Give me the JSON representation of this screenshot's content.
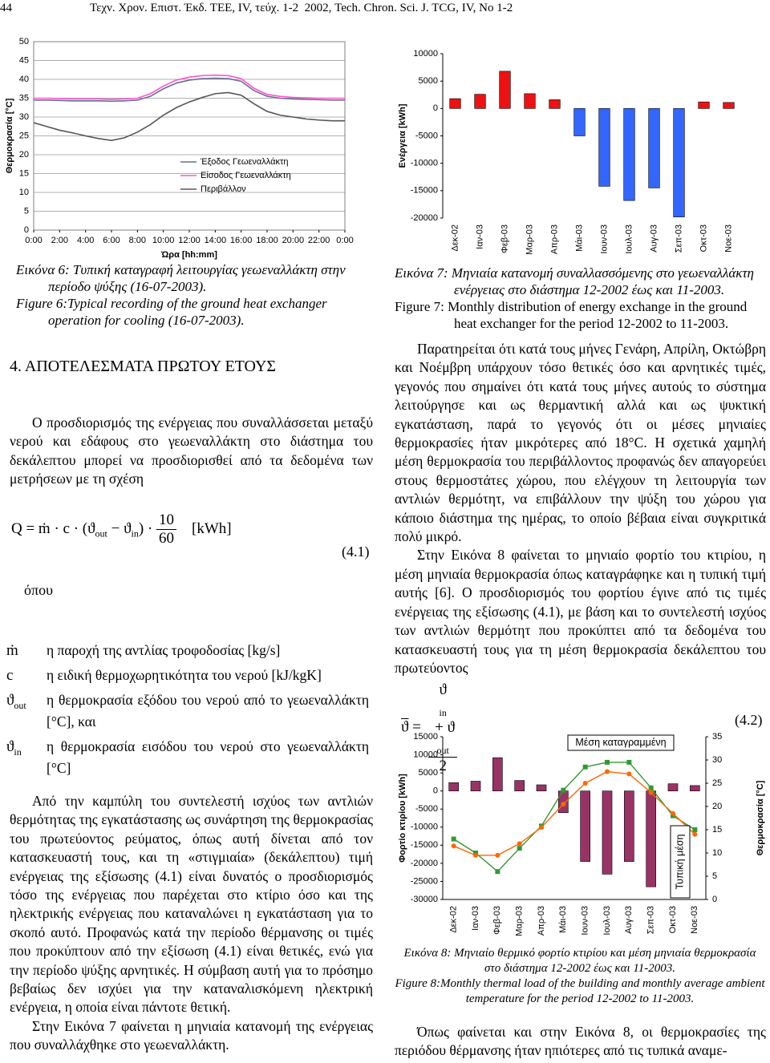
{
  "header": {
    "page_number": "44",
    "journal": "Τεχν. Χρον. Επιστ. Έκδ. ΤΕΕ, IV, τεύχ. 1-2  2002, Tech. Chron. Sci. J. TCG, IV, No 1-2"
  },
  "chart_data": [
    {
      "type": "line",
      "ylabel": "Θερμοκρασία [°C]",
      "xlabel": "Ώρα [hh:mm]",
      "x": [
        0,
        1,
        2,
        3,
        4,
        5,
        6,
        7,
        8,
        9,
        10,
        11,
        12,
        13,
        14,
        15,
        16,
        17,
        18,
        19,
        20,
        21,
        22,
        23,
        24
      ],
      "xlim": [
        0,
        24
      ],
      "xticks": [
        {
          "value": 0,
          "label": "0:00"
        },
        {
          "value": 2,
          "label": "2:00"
        },
        {
          "value": 4,
          "label": "4:00"
        },
        {
          "value": 6,
          "label": "6:00"
        },
        {
          "value": 8,
          "label": "8:00"
        },
        {
          "value": 10,
          "label": "10:00"
        },
        {
          "value": 12,
          "label": "12:00"
        },
        {
          "value": 14,
          "label": "14:00"
        },
        {
          "value": 16,
          "label": "16:00"
        },
        {
          "value": 18,
          "label": "18:00"
        },
        {
          "value": 20,
          "label": "20:00"
        },
        {
          "value": 22,
          "label": "22:00"
        },
        {
          "value": 24,
          "label": "0:00"
        }
      ],
      "ylim": [
        0,
        50
      ],
      "yticks": [
        0,
        5,
        10,
        15,
        20,
        25,
        30,
        35,
        40,
        45,
        50
      ],
      "grid": true,
      "legend": "lower-center",
      "series": [
        {
          "name": "Έξοδος Γεωεναλλάκτη",
          "color": "#6b6b9a",
          "values": [
            34.5,
            34.5,
            34.4,
            34.3,
            34.3,
            34.3,
            34.2,
            34.3,
            34.5,
            35.5,
            37.5,
            39,
            39.8,
            40.2,
            40.3,
            40.2,
            39.5,
            37,
            35.5,
            35,
            34.8,
            34.7,
            34.6,
            34.5,
            34.5
          ]
        },
        {
          "name": "Είσοδος Γεωεναλλάκτη",
          "color": "#ff55cc",
          "values": [
            35,
            35,
            34.9,
            34.8,
            34.8,
            34.8,
            34.7,
            34.8,
            35,
            36.2,
            38.2,
            39.8,
            40.6,
            41,
            41.1,
            41,
            40.2,
            37.6,
            36,
            35.5,
            35.2,
            35.1,
            35,
            35,
            35
          ]
        },
        {
          "name": "Περιβάλλον",
          "color": "#555555",
          "values": [
            28.5,
            27.5,
            26.5,
            25.8,
            25,
            24.3,
            23.8,
            24.5,
            26,
            28,
            30.5,
            32.5,
            34,
            35.2,
            36.2,
            36.5,
            35.8,
            33.5,
            31.5,
            30.5,
            30,
            29.5,
            29.2,
            29,
            29
          ]
        }
      ]
    },
    {
      "type": "bar",
      "ylabel": "Ενέργεια [kWh]",
      "categories": [
        "Δεκ-02",
        "Ιαν-03",
        "Φεβ-03",
        "Μαρ-03",
        "Απρ-03",
        "Μάι-03",
        "Ιουν-03",
        "Ιουλ-03",
        "Αυγ-03",
        "Σεπ-03",
        "Οκτ-03",
        "Νοε-03"
      ],
      "values": [
        1800,
        2600,
        6800,
        2700,
        1600,
        -5000,
        -14200,
        -16800,
        -14500,
        -19800,
        1200,
        1100
      ],
      "positive_color": "#ee1111",
      "negative_color": "#3366ff",
      "ylim": [
        -20000,
        10000
      ],
      "yticks": [
        -20000,
        -15000,
        -10000,
        -5000,
        0,
        5000,
        10000
      ],
      "grid": false
    },
    {
      "type": "combo",
      "ylabel": "Φορτίο κτιρίου [kWh]",
      "y2label": "Θερμοκρασία [°C]",
      "categories": [
        "Δεκ-02",
        "Ιαν-03",
        "Φεβ-03",
        "Μαρ-03",
        "Απρ-03",
        "Μάι-03",
        "Ιουν-03",
        "Ιουλ-03",
        "Αυγ-03",
        "Σεπ-03",
        "Οκτ-03",
        "Νοε-03"
      ],
      "ylim": [
        -30000,
        15000
      ],
      "yticks": [
        -30000,
        -25000,
        -20000,
        -15000,
        -10000,
        -5000,
        0,
        5000,
        10000,
        15000
      ],
      "y2lim": [
        0,
        35
      ],
      "y2ticks": [
        0,
        5,
        10,
        15,
        20,
        25,
        30,
        35
      ],
      "grid": false,
      "series": [
        {
          "type": "bar",
          "color": "#993366",
          "values": [
            2300,
            2700,
            9200,
            2900,
            1700,
            -6000,
            -19500,
            -23000,
            -19500,
            -26500,
            2000,
            1500
          ]
        },
        {
          "type": "line",
          "name": "Μέση καταγραμμένη",
          "color": "#339933",
          "axis": "y2",
          "marker": "square",
          "values": [
            13,
            10,
            6,
            11,
            15.8,
            23.5,
            28.5,
            29.5,
            29.5,
            24,
            18,
            15
          ]
        },
        {
          "type": "line",
          "name": "Τυπική μέση",
          "color": "#ff6600",
          "axis": "y2",
          "marker": "circle",
          "values": [
            11.5,
            9.5,
            9.5,
            12,
            15.5,
            20.5,
            25,
            27.5,
            27,
            23,
            18.5,
            14
          ]
        }
      ]
    }
  ],
  "captions": [
    {
      "greek": "Εικόνα 6: Τυπική καταγραφή λειτουργίας γεωεναλλάκτη στην περίοδο ψύξης (16-07-2003).",
      "english": "Figure 6:Typical recording of the ground heat exchanger operation for cooling (16-07-2003)."
    },
    {
      "greek": "Εικόνα 7: Μηνιαία κατανομή συναλλασσόμενης στο γεωεναλλάκτη ενέργειας στο διάστημα 12-2002 έως και 11-2003.",
      "english": "Figure 7: Monthly distribution of energy exchange in the ground heat exchanger for the period 12-2002 to 11-2003."
    },
    {
      "greek": "Εικόνα 8: Μηνιαίο θερμικό φορτίο κτιρίου και μέση μηνιαία θερμοκρασία στο διάστημα 12-2002 έως και 11-2003.",
      "english": "Figure 8:Monthly thermal load of the building and monthly average ambient temperature for the period 12-2002 to 11-2003."
    }
  ],
  "left_column": {
    "heading": "4. ΑΠΟΤΕΛΕΣΜΑΤΑ ΠΡΩΤΟΥ ΕΤΟΥΣ",
    "intro": "Ο προσδιορισμός της ενέργειας που συναλλάσσεται μεταξύ νερού και εδάφους στο γεωεναλλάκτη στο διάστημα του δεκάλεπτου μπορεί να προσδιορισθεί από τα δεδομένα των μετρήσεων με τη σχέση",
    "equation": {
      "lhs": "Q = ṁ · c · (ϑ",
      "sub1": "out",
      "mid": " − ϑ",
      "sub2": "in",
      "rhs": ") ·",
      "num": "10",
      "den": "60",
      "unit": "[kWh]",
      "number": "(4.1)"
    },
    "where": "όπου",
    "definitions": [
      {
        "symbol": "ṁ",
        "text": "η παροχή της αντλίας τροφοδοσίας [kg/s]"
      },
      {
        "symbol": "c",
        "text": "η ειδική θερμοχωρητικότητα του νερού [kJ/kgK]"
      },
      {
        "symbol": "ϑ",
        "sub": "out",
        "text": "η θερμοκρασία εξόδου του νερού από το γεωεναλλάκτη [°C], και"
      },
      {
        "symbol": "ϑ",
        "sub": "in",
        "text": "η θερμοκρασία εισόδου του νερού στο γεωεναλλάκτη [°C]"
      }
    ],
    "paragraphs": [
      "Από την καμπύλη του συντελεστή ισχύος των αντλιών θερμότητας της εγκατάστασης ως συνάρτηση της θερμοκρασίας του πρωτεύοντος ρεύματος, όπως αυτή δίνεται από τον κατασκευαστή τους, και τη «στιγμιαία» (δεκάλεπτου) τιμή ενέργειας της εξίσωσης (4.1) είναι δυνατός ο προσδιορισμός τόσο της ενέργειας που παρέχεται στο κτίριο όσο και της ηλεκτρικής ενέργειας που καταναλώνει η εγκατάσταση για το σκοπό αυτό. Προφανώς κατά την περίοδο θέρμανσης οι τιμές που προκύπτουν από την εξίσωση (4.1) είναι θετικές, ενώ για την περίοδο ψύξης αρνητικές. Η σύμβαση αυτή για το πρόσημο βεβαίως δεν ισχύει για την καταναλισκόμενη ηλεκτρική ενέργεια, η οποία είναι πάντοτε θετική.",
      "Στην Εικόνα 7 φαίνεται η μηνιαία κατανομή της ενέργειας που συναλλάχθηκε στο γεωεναλλάκτη."
    ]
  },
  "right_column": {
    "paragraphs": [
      "Παρατηρείται ότι κατά τους μήνες Γενάρη, Απρίλη, Οκτώβρη και Νοέμβρη υπάρχουν τόσο θετικές όσο και αρνητικές τιμές, γεγονός που σημαίνει ότι κατά τους μήνες αυτούς το σύστημα λειτούργησε και ως θερμαντική αλλά και ως ψυκτική εγκατάσταση, παρά το γεγονός ότι οι μέσες μηνιαίες θερμοκρασίες ήταν μικρότερες από 18°C. Η σχετικά χαμηλή μέση θερμοκρασία του περιβάλλοντος προφανώς δεν απαγορεύει στους θερμοστάτες χώρου, που ελέγχουν τη λειτουργία των αντλιών θερμότητ, να επιβάλλουν την ψύξη του χώρου για κάποιο διάστημα της ημέρας, το οποίο βέβαια είναι συγκριτικά πολύ μικρό.",
      "Στην Εικόνα 8 φαίνεται το μηνιαίο φορτίο του κτιρίου, η μέση μηνιαία θερμοκρασία όπως καταγράφηκε και η τυπική τιμή αυτής [6]. Ο προσδιορισμός του φορτίου έγινε από τις τιμές ενέργειας της εξίσωσης (4.1), με βάση και το συντελεστή ισχύος των αντλιών θερμότητ που προκύπτει από τα δεδομένα του κατασκευαστή τους για τη μέση θερμοκρασία δεκάλεπτου του πρωτεύοντος"
    ],
    "equation": {
      "lhs": "ϑ",
      "eq": " = ",
      "n1": "ϑ",
      "sub1": "in",
      "plus": " + ϑ",
      "sub2": "out",
      "den": "2",
      "number": "(4.2)"
    },
    "closing": "Όπως φαίνεται και στην Εικόνα 8, οι θερμοκρασίες της περιόδου θέρμανσης ήταν ηπιότερες από τις τυπικά αναμε-"
  }
}
